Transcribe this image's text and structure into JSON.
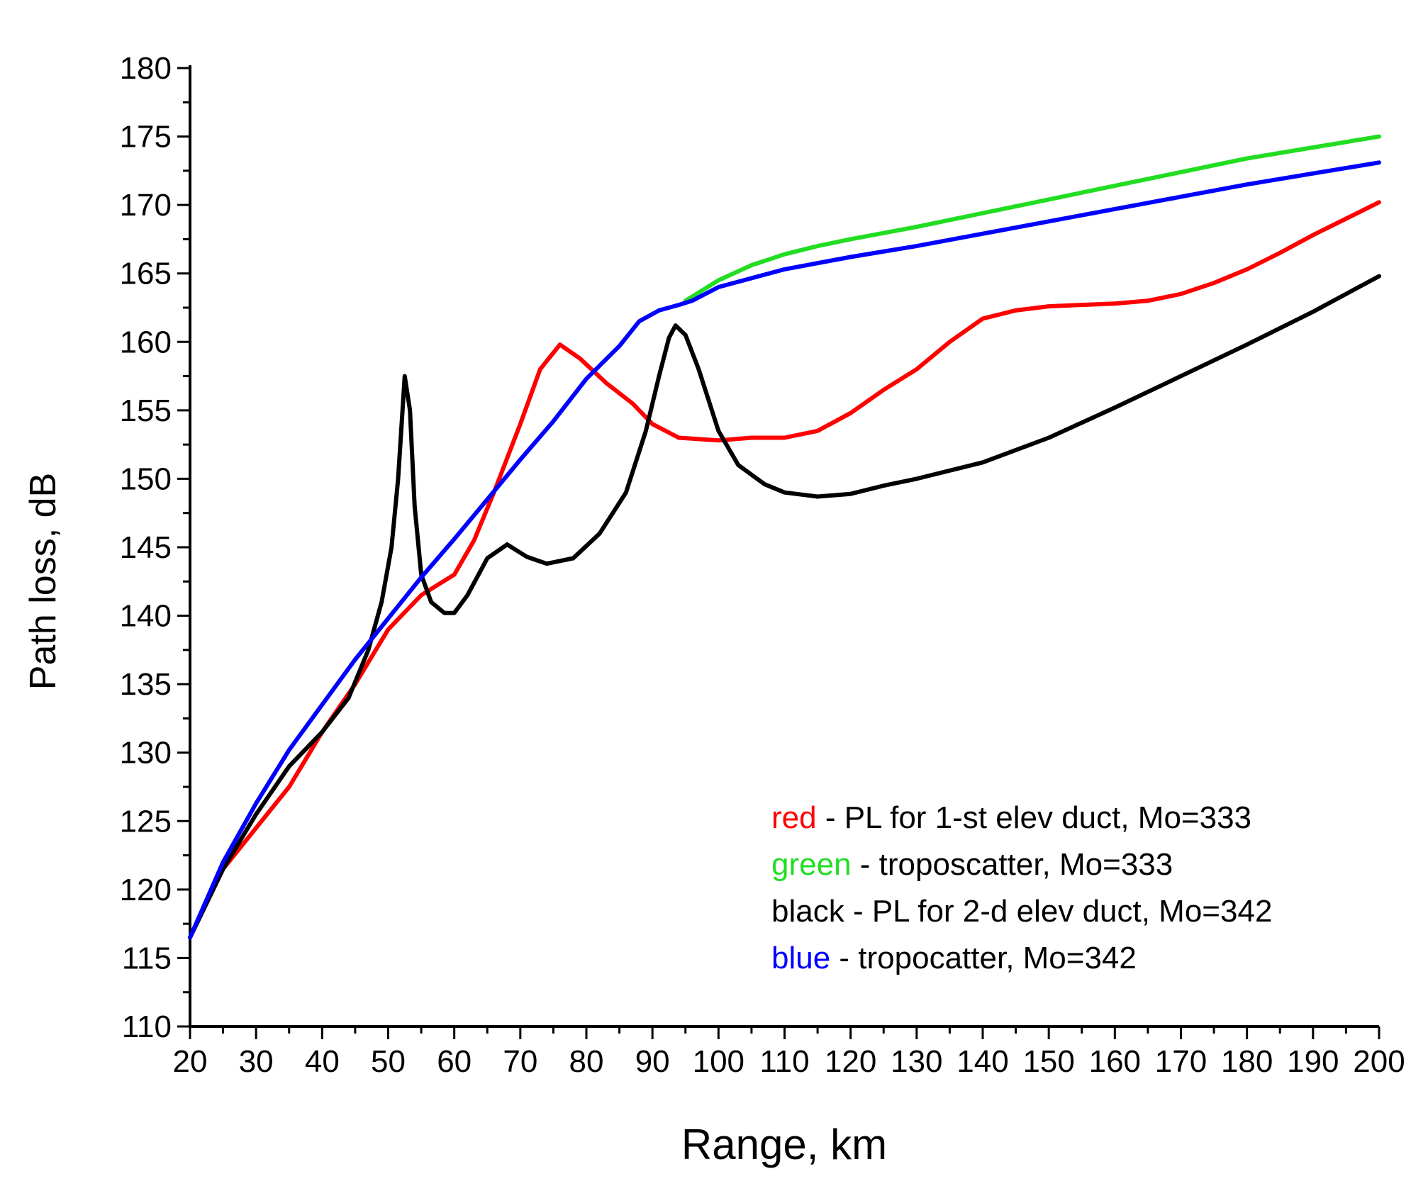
{
  "chart_data": {
    "type": "line",
    "title": "",
    "xlabel": "Range, km",
    "ylabel": "Path loss, dB",
    "xlim": [
      20,
      200
    ],
    "ylim": [
      110,
      180
    ],
    "xticks": [
      20,
      30,
      40,
      50,
      60,
      70,
      80,
      90,
      100,
      110,
      120,
      130,
      140,
      150,
      160,
      170,
      180,
      190,
      200
    ],
    "yticks": [
      110,
      115,
      120,
      125,
      130,
      135,
      140,
      145,
      150,
      155,
      160,
      165,
      170,
      175,
      180
    ],
    "grid": false,
    "legend_position": "bottom-right",
    "legend": [
      {
        "key": "red",
        "text": " - PL for 1-st elev duct, Mo=333",
        "color": "#ff0000"
      },
      {
        "key": "green",
        "text": " - troposcatter, Mo=333",
        "color": "#22dd22"
      },
      {
        "key": "black",
        "text": " - PL for 2-d elev duct, Mo=342",
        "color": "#000000"
      },
      {
        "key": "blue",
        "text": " - tropocatter, Mo=342",
        "color": "#0000ff"
      }
    ],
    "series": [
      {
        "name": "red - PL for 1-st elev duct, Mo=333",
        "color": "#ff0000",
        "points": [
          [
            20,
            116.5
          ],
          [
            25,
            121.5
          ],
          [
            30,
            124.5
          ],
          [
            35,
            127.5
          ],
          [
            40,
            131.5
          ],
          [
            45,
            135
          ],
          [
            50,
            139
          ],
          [
            55,
            141.5
          ],
          [
            60,
            143
          ],
          [
            63,
            145.5
          ],
          [
            66,
            149
          ],
          [
            70,
            154
          ],
          [
            73,
            158
          ],
          [
            76,
            159.8
          ],
          [
            79,
            158.8
          ],
          [
            83,
            157
          ],
          [
            87,
            155.5
          ],
          [
            90,
            154
          ],
          [
            94,
            153
          ],
          [
            100,
            152.8
          ],
          [
            105,
            153
          ],
          [
            110,
            153
          ],
          [
            115,
            153.5
          ],
          [
            120,
            154.8
          ],
          [
            125,
            156.5
          ],
          [
            130,
            158
          ],
          [
            135,
            160
          ],
          [
            140,
            161.7
          ],
          [
            145,
            162.3
          ],
          [
            150,
            162.6
          ],
          [
            155,
            162.7
          ],
          [
            160,
            162.8
          ],
          [
            165,
            163
          ],
          [
            170,
            163.5
          ],
          [
            175,
            164.3
          ],
          [
            180,
            165.3
          ],
          [
            185,
            166.5
          ],
          [
            190,
            167.8
          ],
          [
            195,
            169
          ],
          [
            200,
            170.2
          ]
        ]
      },
      {
        "name": "green - troposcatter, Mo=333",
        "color": "#22dd22",
        "points": [
          [
            95,
            163
          ],
          [
            100,
            164.5
          ],
          [
            105,
            165.6
          ],
          [
            110,
            166.4
          ],
          [
            115,
            167
          ],
          [
            120,
            167.5
          ],
          [
            130,
            168.4
          ],
          [
            140,
            169.4
          ],
          [
            150,
            170.4
          ],
          [
            160,
            171.4
          ],
          [
            170,
            172.4
          ],
          [
            180,
            173.4
          ],
          [
            190,
            174.2
          ],
          [
            200,
            175
          ]
        ]
      },
      {
        "name": "black - PL for 2-d elev duct, Mo=342",
        "color": "#000000",
        "points": [
          [
            20,
            116.5
          ],
          [
            25,
            121.5
          ],
          [
            30,
            125.5
          ],
          [
            35,
            129
          ],
          [
            40,
            131.5
          ],
          [
            44,
            134
          ],
          [
            47,
            137.5
          ],
          [
            49,
            141
          ],
          [
            50.5,
            145
          ],
          [
            51.5,
            150
          ],
          [
            52.5,
            157.5
          ],
          [
            53.3,
            155
          ],
          [
            54,
            148
          ],
          [
            55,
            143
          ],
          [
            56.5,
            141
          ],
          [
            58.5,
            140.2
          ],
          [
            60,
            140.2
          ],
          [
            62,
            141.5
          ],
          [
            65,
            144.2
          ],
          [
            68,
            145.2
          ],
          [
            71,
            144.3
          ],
          [
            74,
            143.8
          ],
          [
            78,
            144.2
          ],
          [
            82,
            146
          ],
          [
            86,
            149
          ],
          [
            89,
            153.5
          ],
          [
            91,
            157.5
          ],
          [
            92.5,
            160.3
          ],
          [
            93.5,
            161.2
          ],
          [
            95,
            160.5
          ],
          [
            97,
            158
          ],
          [
            100,
            153.5
          ],
          [
            103,
            151
          ],
          [
            107,
            149.6
          ],
          [
            110,
            149
          ],
          [
            115,
            148.7
          ],
          [
            120,
            148.9
          ],
          [
            125,
            149.5
          ],
          [
            130,
            150
          ],
          [
            140,
            151.2
          ],
          [
            150,
            153
          ],
          [
            160,
            155.2
          ],
          [
            170,
            157.5
          ],
          [
            180,
            159.8
          ],
          [
            190,
            162.2
          ],
          [
            200,
            164.8
          ]
        ]
      },
      {
        "name": "blue - tropocatter, Mo=342",
        "color": "#0000ff",
        "points": [
          [
            20,
            116.5
          ],
          [
            25,
            122
          ],
          [
            30,
            126.3
          ],
          [
            35,
            130.2
          ],
          [
            40,
            133.5
          ],
          [
            45,
            136.8
          ],
          [
            50,
            139.8
          ],
          [
            55,
            142.8
          ],
          [
            60,
            145.6
          ],
          [
            65,
            148.5
          ],
          [
            70,
            151.4
          ],
          [
            75,
            154.2
          ],
          [
            80,
            157.3
          ],
          [
            85,
            159.7
          ],
          [
            88,
            161.5
          ],
          [
            91,
            162.3
          ],
          [
            94,
            162.7
          ],
          [
            96,
            163
          ],
          [
            100,
            164
          ],
          [
            110,
            165.3
          ],
          [
            120,
            166.2
          ],
          [
            130,
            167
          ],
          [
            140,
            167.9
          ],
          [
            150,
            168.8
          ],
          [
            160,
            169.7
          ],
          [
            170,
            170.6
          ],
          [
            180,
            171.5
          ],
          [
            190,
            172.3
          ],
          [
            200,
            173.1
          ]
        ]
      }
    ]
  }
}
